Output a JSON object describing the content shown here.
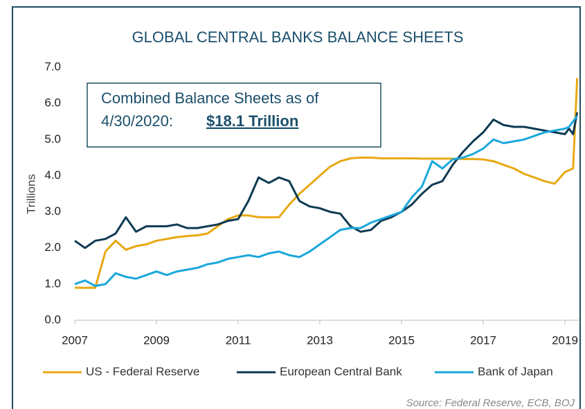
{
  "chart_data": {
    "type": "line",
    "title": "GLOBAL CENTRAL BANKS BALANCE SHEETS",
    "y_label": "Trillions",
    "annotation": {
      "lines": [
        "Combined Balance Sheets as of",
        "4/30/2020:"
      ],
      "highlight": "$18.1 Trillion"
    },
    "source": "Source: Federal Reserve, ECB, BOJ",
    "x": [
      2007.0,
      2007.25,
      2007.5,
      2007.75,
      2008.0,
      2008.25,
      2008.5,
      2008.75,
      2009.0,
      2009.25,
      2009.5,
      2009.75,
      2010.0,
      2010.25,
      2010.5,
      2010.75,
      2011.0,
      2011.25,
      2011.5,
      2011.75,
      2012.0,
      2012.25,
      2012.5,
      2012.75,
      2013.0,
      2013.25,
      2013.5,
      2013.75,
      2014.0,
      2014.25,
      2014.5,
      2014.75,
      2015.0,
      2015.25,
      2015.5,
      2015.75,
      2016.0,
      2016.25,
      2016.5,
      2016.75,
      2017.0,
      2017.25,
      2017.5,
      2017.75,
      2018.0,
      2018.25,
      2018.5,
      2018.75,
      2019.0,
      2019.1,
      2019.2,
      2019.3
    ],
    "series": [
      {
        "name": "US - Federal Reserve",
        "color": "#e8a812",
        "values": [
          0.9,
          0.9,
          0.9,
          1.9,
          2.2,
          1.95,
          2.05,
          2.1,
          2.2,
          2.25,
          2.3,
          2.33,
          2.35,
          2.4,
          2.6,
          2.8,
          2.9,
          2.9,
          2.85,
          2.85,
          2.85,
          3.2,
          3.5,
          3.75,
          4.0,
          4.25,
          4.4,
          4.48,
          4.5,
          4.5,
          4.48,
          4.48,
          4.48,
          4.48,
          4.47,
          4.47,
          4.47,
          4.47,
          4.46,
          4.46,
          4.45,
          4.4,
          4.3,
          4.2,
          4.05,
          3.95,
          3.85,
          3.78,
          4.1,
          4.15,
          4.2,
          6.7
        ]
      },
      {
        "name": "European Central Bank",
        "color": "#0d3a52",
        "values": [
          2.2,
          2.0,
          2.2,
          2.25,
          2.4,
          2.85,
          2.45,
          2.6,
          2.6,
          2.6,
          2.65,
          2.55,
          2.55,
          2.6,
          2.65,
          2.75,
          2.8,
          3.3,
          3.95,
          3.8,
          3.95,
          3.85,
          3.3,
          3.15,
          3.1,
          3.0,
          2.95,
          2.6,
          2.45,
          2.5,
          2.75,
          2.85,
          3.0,
          3.2,
          3.5,
          3.75,
          3.85,
          4.3,
          4.65,
          4.95,
          5.2,
          5.55,
          5.4,
          5.35,
          5.35,
          5.3,
          5.25,
          5.2,
          5.15,
          5.3,
          5.15,
          5.75
        ]
      },
      {
        "name": "Bank of Japan",
        "color": "#1aa7dc",
        "values": [
          1.0,
          1.1,
          0.95,
          1.0,
          1.3,
          1.2,
          1.15,
          1.25,
          1.35,
          1.25,
          1.35,
          1.4,
          1.45,
          1.55,
          1.6,
          1.7,
          1.75,
          1.8,
          1.75,
          1.85,
          1.9,
          1.8,
          1.75,
          1.9,
          2.1,
          2.3,
          2.5,
          2.55,
          2.55,
          2.7,
          2.8,
          2.9,
          3.0,
          3.4,
          3.7,
          4.4,
          4.2,
          4.45,
          4.5,
          4.6,
          4.75,
          5.0,
          4.9,
          4.95,
          5.0,
          5.1,
          5.2,
          5.25,
          5.3,
          5.35,
          5.5,
          5.65
        ]
      }
    ],
    "xlim": [
      2007,
      2019.35
    ],
    "xticks": [
      2007,
      2009,
      2011,
      2013,
      2015,
      2017,
      2019
    ],
    "ylim": [
      0,
      7
    ],
    "yticks": [
      {
        "value": 0,
        "label": "0.0"
      },
      {
        "value": 1,
        "label": "1.0"
      },
      {
        "value": 2,
        "label": "2.0"
      },
      {
        "value": 3,
        "label": "3.0"
      },
      {
        "value": 4,
        "label": "4.0"
      },
      {
        "value": 5,
        "label": "5.0"
      },
      {
        "value": 6,
        "label": "6.0"
      },
      {
        "value": 7,
        "label": "7.0"
      }
    ],
    "grid": false,
    "legend": "bottom"
  }
}
